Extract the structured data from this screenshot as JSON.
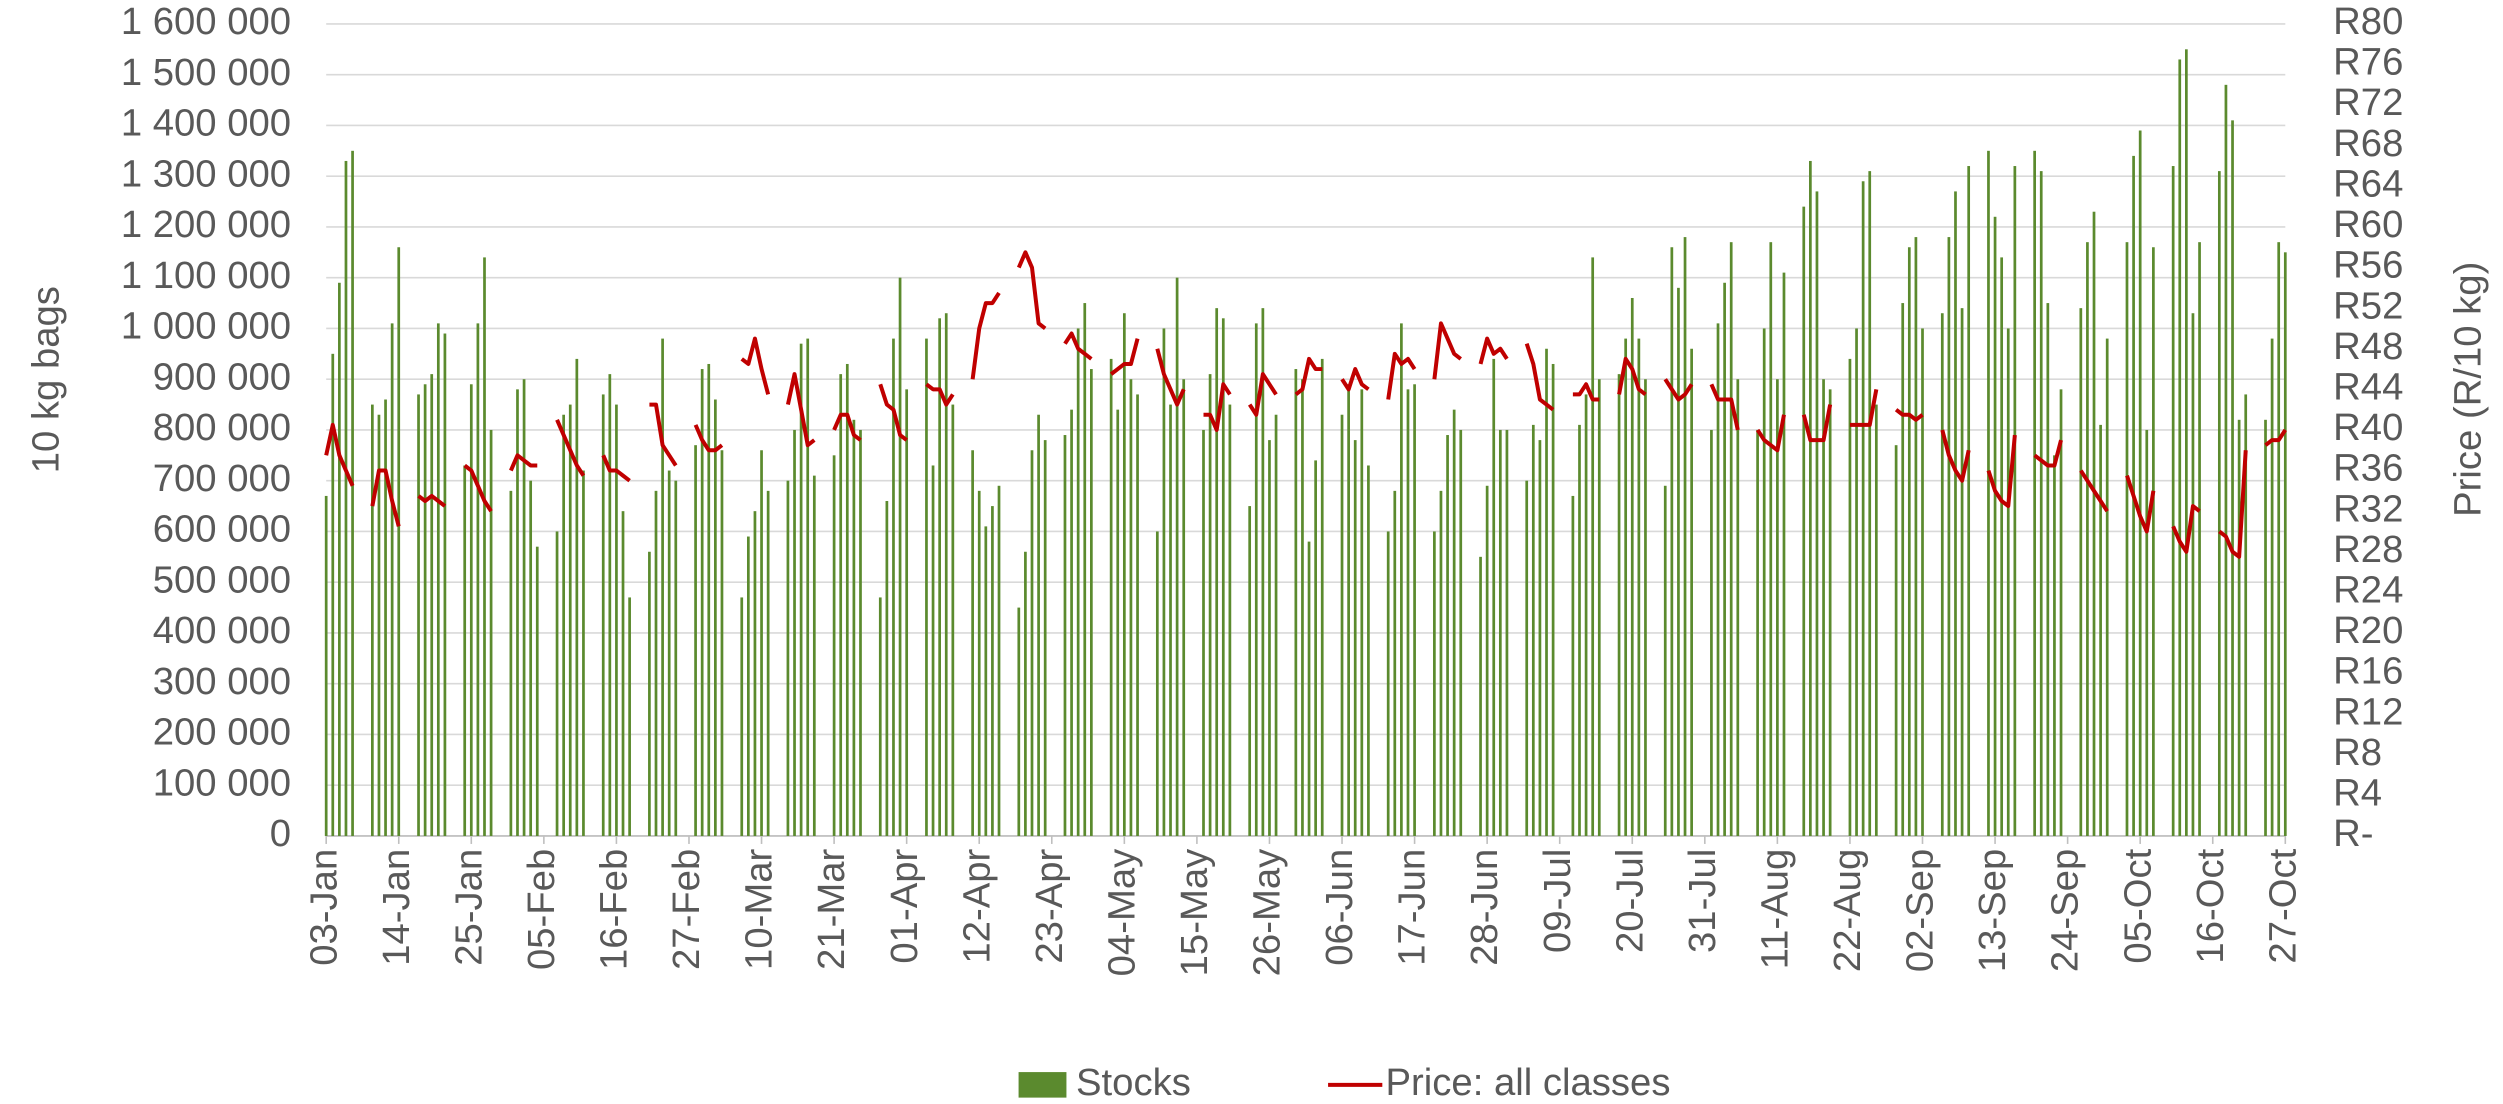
{
  "chart_data": {
    "type": "combo",
    "y_label": "10 kg bags",
    "y2_label": "Price (R/10 kg)",
    "ylim": [
      0,
      1600000
    ],
    "yticks": [
      0,
      {
        "value": 100000,
        "label": "100 000"
      },
      {
        "value": 200000,
        "label": "200 000"
      },
      {
        "value": 300000,
        "label": "300 000"
      },
      {
        "value": 400000,
        "label": "400 000"
      },
      {
        "value": 500000,
        "label": "500 000"
      },
      {
        "value": 600000,
        "label": "600 000"
      },
      {
        "value": 700000,
        "label": "700 000"
      },
      {
        "value": 800000,
        "label": "800 000"
      },
      {
        "value": 900000,
        "label": "900 000"
      },
      {
        "value": 1000000,
        "label": "1 000 000"
      },
      {
        "value": 1100000,
        "label": "1 100 000"
      },
      {
        "value": 1200000,
        "label": "1 200 000"
      },
      {
        "value": 1300000,
        "label": "1 300 000"
      },
      {
        "value": 1400000,
        "label": "1 400 000"
      },
      {
        "value": 1500000,
        "label": "1 500 000"
      },
      {
        "value": 1600000,
        "label": "1 600 000"
      }
    ],
    "y2lim": [
      0,
      80
    ],
    "y2ticks": [
      {
        "value": 0,
        "label": "R-"
      },
      {
        "value": 4,
        "label": "R4"
      },
      {
        "value": 8,
        "label": "R8"
      },
      {
        "value": 12,
        "label": "R12"
      },
      {
        "value": 16,
        "label": "R16"
      },
      {
        "value": 20,
        "label": "R20"
      },
      {
        "value": 24,
        "label": "R24"
      },
      {
        "value": 28,
        "label": "R28"
      },
      {
        "value": 32,
        "label": "R32"
      },
      {
        "value": 36,
        "label": "R36"
      },
      {
        "value": 40,
        "label": "R40"
      },
      {
        "value": 44,
        "label": "R44"
      },
      {
        "value": 48,
        "label": "R48"
      },
      {
        "value": 52,
        "label": "R52"
      },
      {
        "value": 56,
        "label": "R56"
      },
      {
        "value": 60,
        "label": "R60"
      },
      {
        "value": 64,
        "label": "R64"
      },
      {
        "value": 68,
        "label": "R68"
      },
      {
        "value": 72,
        "label": "R72"
      },
      {
        "value": 76,
        "label": "R76"
      },
      {
        "value": 80,
        "label": "R80"
      }
    ],
    "grid": true,
    "legend": "bottom",
    "categories": [
      "03-Jan",
      null,
      null,
      null,
      null,
      null,
      null,
      null,
      null,
      null,
      null,
      "14-Jan",
      null,
      null,
      null,
      null,
      null,
      null,
      null,
      null,
      null,
      null,
      "25-Jan",
      null,
      null,
      null,
      null,
      null,
      null,
      null,
      null,
      null,
      null,
      "05-Feb",
      null,
      null,
      null,
      null,
      null,
      null,
      null,
      null,
      null,
      null,
      "16-Feb",
      null,
      null,
      null,
      null,
      null,
      null,
      null,
      null,
      null,
      null,
      "27-Feb",
      null,
      null,
      null,
      null,
      null,
      null,
      null,
      null,
      null,
      null,
      "10-Mar",
      null,
      null,
      null,
      null,
      null,
      null,
      null,
      null,
      null,
      null,
      "21-Mar",
      null,
      null,
      null,
      null,
      null,
      null,
      null,
      null,
      null,
      null,
      "01-Apr",
      null,
      null,
      null,
      null,
      null,
      null,
      null,
      null,
      null,
      null,
      "12-Apr",
      null,
      null,
      null,
      null,
      null,
      null,
      null,
      null,
      null,
      null,
      "23-Apr",
      null,
      null,
      null,
      null,
      null,
      null,
      null,
      null,
      null,
      null,
      "04-May",
      null,
      null,
      null,
      null,
      null,
      null,
      null,
      null,
      null,
      null,
      "15-May",
      null,
      null,
      null,
      null,
      null,
      null,
      null,
      null,
      null,
      null,
      "26-May",
      null,
      null,
      null,
      null,
      null,
      null,
      null,
      null,
      null,
      null,
      "06-Jun",
      null,
      null,
      null,
      null,
      null,
      null,
      null,
      null,
      null,
      null,
      "17-Jun",
      null,
      null,
      null,
      null,
      null,
      null,
      null,
      null,
      null,
      null,
      "28-Jun",
      null,
      null,
      null,
      null,
      null,
      null,
      null,
      null,
      null,
      null,
      "09-Jul",
      null,
      null,
      null,
      null,
      null,
      null,
      null,
      null,
      null,
      null,
      "20-Jul",
      null,
      null,
      null,
      null,
      null,
      null,
      null,
      null,
      null,
      null,
      "31-Jul",
      null,
      null,
      null,
      null,
      null,
      null,
      null,
      null,
      null,
      null,
      "11-Aug",
      null,
      null,
      null,
      null,
      null,
      null,
      null,
      null,
      null,
      null,
      "22-Aug",
      null,
      null,
      null,
      null,
      null,
      null,
      null,
      null,
      null,
      null,
      "02-Sep",
      null,
      null,
      null,
      null,
      null,
      null,
      null,
      null,
      null,
      null,
      "13-Sep",
      null,
      null,
      null,
      null,
      null,
      null,
      null,
      null,
      null,
      null,
      "24-Sep",
      null,
      null,
      null,
      null,
      null,
      null,
      null,
      null,
      null,
      null,
      "05-Oct",
      null,
      null,
      null,
      null,
      null,
      null,
      null,
      null,
      null,
      null,
      "16-Oct",
      null,
      null,
      null,
      null,
      null,
      null,
      null,
      null,
      null,
      null,
      "27-Oct"
    ],
    "series": [
      {
        "name": "Stocks",
        "type": "bar",
        "color": "#5b8a2e",
        "values": [
          670000,
          950000,
          1090000,
          1330000,
          1350000,
          null,
          null,
          850000,
          830000,
          860000,
          1010000,
          1160000,
          null,
          null,
          870000,
          890000,
          910000,
          1010000,
          990000,
          null,
          null,
          730000,
          890000,
          1010000,
          1140000,
          800000,
          null,
          null,
          680000,
          880000,
          900000,
          700000,
          570000,
          null,
          null,
          600000,
          830000,
          850000,
          940000,
          720000,
          null,
          null,
          870000,
          910000,
          850000,
          640000,
          470000,
          null,
          null,
          560000,
          680000,
          980000,
          720000,
          700000,
          null,
          null,
          770000,
          920000,
          930000,
          860000,
          760000,
          null,
          null,
          470000,
          590000,
          640000,
          760000,
          680000,
          null,
          null,
          700000,
          800000,
          970000,
          980000,
          710000,
          null,
          null,
          750000,
          910000,
          930000,
          820000,
          800000,
          null,
          null,
          470000,
          660000,
          980000,
          1100000,
          880000,
          null,
          null,
          980000,
          730000,
          1020000,
          1030000,
          850000,
          null,
          null,
          760000,
          680000,
          610000,
          650000,
          690000,
          null,
          null,
          450000,
          560000,
          760000,
          830000,
          780000,
          null,
          null,
          790000,
          840000,
          1000000,
          1050000,
          920000,
          null,
          null,
          940000,
          840000,
          1030000,
          900000,
          870000,
          null,
          null,
          600000,
          1000000,
          850000,
          1100000,
          900000,
          null,
          null,
          800000,
          910000,
          1040000,
          1020000,
          850000,
          null,
          null,
          650000,
          1010000,
          1040000,
          780000,
          830000,
          null,
          null,
          920000,
          900000,
          580000,
          740000,
          940000,
          null,
          null,
          830000,
          890000,
          780000,
          880000,
          730000,
          null,
          null,
          600000,
          680000,
          1010000,
          880000,
          890000,
          null,
          null,
          600000,
          680000,
          790000,
          840000,
          800000,
          null,
          null,
          550000,
          690000,
          940000,
          800000,
          800000,
          null,
          null,
          700000,
          810000,
          780000,
          960000,
          930000,
          null,
          null,
          670000,
          810000,
          870000,
          1140000,
          900000,
          null,
          null,
          910000,
          980000,
          1060000,
          980000,
          900000,
          null,
          null,
          690000,
          1160000,
          1080000,
          1180000,
          960000,
          null,
          null,
          800000,
          1010000,
          1090000,
          1170000,
          900000,
          null,
          null,
          800000,
          1000000,
          1170000,
          900000,
          1110000,
          null,
          null,
          1240000,
          1330000,
          1270000,
          900000,
          880000,
          null,
          null,
          940000,
          1000000,
          1290000,
          1310000,
          850000,
          null,
          null,
          770000,
          1050000,
          1160000,
          1180000,
          1000000,
          null,
          null,
          1030000,
          1180000,
          1270000,
          1040000,
          1320000,
          null,
          null,
          1350000,
          1220000,
          1140000,
          1000000,
          1320000,
          null,
          null,
          1350000,
          1310000,
          1050000,
          750000,
          880000,
          null,
          null,
          1040000,
          1170000,
          1230000,
          810000,
          980000,
          null,
          null,
          1170000,
          1340000,
          1390000,
          800000,
          1160000,
          null,
          null,
          1320000,
          1530000,
          1550000,
          1030000,
          1170000,
          null,
          null,
          1310000,
          1480000,
          1410000,
          820000,
          870000,
          null,
          null,
          820000,
          980000,
          1170000,
          1150000
        ]
      },
      {
        "name": "Price: all classes",
        "type": "line",
        "axis": "y2",
        "color": "#c00000",
        "values": [
          37.5,
          40.5,
          37.5,
          36,
          34.5,
          null,
          null,
          32.5,
          36,
          36,
          33,
          30.5,
          null,
          null,
          33.5,
          33,
          33.5,
          33,
          32.5,
          null,
          null,
          36.5,
          36,
          34.5,
          33,
          32,
          null,
          null,
          36,
          37.5,
          37,
          36.5,
          36.5,
          null,
          null,
          41,
          39.5,
          38,
          36.5,
          35.5,
          null,
          null,
          37.5,
          36,
          36,
          35.5,
          35,
          null,
          null,
          42.5,
          42.5,
          38.5,
          37.5,
          36.5,
          null,
          null,
          40.5,
          39,
          38,
          38,
          38.5,
          null,
          null,
          47,
          46.5,
          49,
          46,
          43.5,
          null,
          null,
          42.5,
          45.5,
          42,
          38.5,
          39,
          null,
          null,
          40,
          41.5,
          41.5,
          39.5,
          39,
          null,
          null,
          44.5,
          42.5,
          42,
          39.5,
          39,
          null,
          null,
          44.5,
          44,
          44,
          42.5,
          43.5,
          null,
          null,
          45,
          50,
          52.5,
          52.5,
          53.5,
          null,
          null,
          56,
          57.5,
          56,
          50.5,
          50,
          null,
          null,
          48.5,
          49.5,
          48,
          47.5,
          47,
          null,
          null,
          45.5,
          46,
          46.5,
          46.5,
          49,
          null,
          null,
          48,
          45.5,
          44,
          42.5,
          44,
          null,
          null,
          41.5,
          41.5,
          40,
          44.5,
          43.5,
          null,
          null,
          42.5,
          41.5,
          45.5,
          44.5,
          43.5,
          null,
          null,
          43.5,
          44,
          47,
          46,
          46,
          null,
          null,
          45,
          44,
          46,
          44.5,
          44,
          null,
          null,
          43,
          47.5,
          46.5,
          47,
          46,
          null,
          null,
          45,
          50.5,
          49,
          47.5,
          47,
          null,
          null,
          46.5,
          49,
          47.5,
          48,
          47,
          null,
          null,
          48.5,
          46.5,
          43,
          42.5,
          42,
          null,
          null,
          43.5,
          43.5,
          44.5,
          43,
          43,
          null,
          null,
          43.5,
          47,
          46,
          44,
          43.5,
          null,
          null,
          45,
          44,
          43,
          43.5,
          44.5,
          null,
          null,
          44.5,
          43,
          43,
          43,
          40,
          null,
          null,
          40,
          39,
          38.5,
          38,
          41.5,
          null,
          null,
          41.5,
          39,
          39,
          39,
          42.5,
          null,
          null,
          40.5,
          40.5,
          40.5,
          40.5,
          44,
          null,
          null,
          42,
          41.5,
          41.5,
          41,
          41.5,
          null,
          null,
          40,
          37.5,
          36,
          35,
          38,
          null,
          null,
          36,
          34,
          33,
          32.5,
          39.5,
          null,
          null,
          37.5,
          37,
          36.5,
          36.5,
          39,
          null,
          null,
          36,
          35,
          34,
          33,
          32,
          null,
          null,
          35.5,
          33.5,
          31.5,
          30,
          34,
          null,
          null,
          30.5,
          29,
          28,
          32.5,
          32,
          null,
          null,
          30,
          29.5,
          28,
          27.5,
          38,
          null,
          null,
          38.5,
          39,
          39,
          40
        ]
      }
    ]
  }
}
